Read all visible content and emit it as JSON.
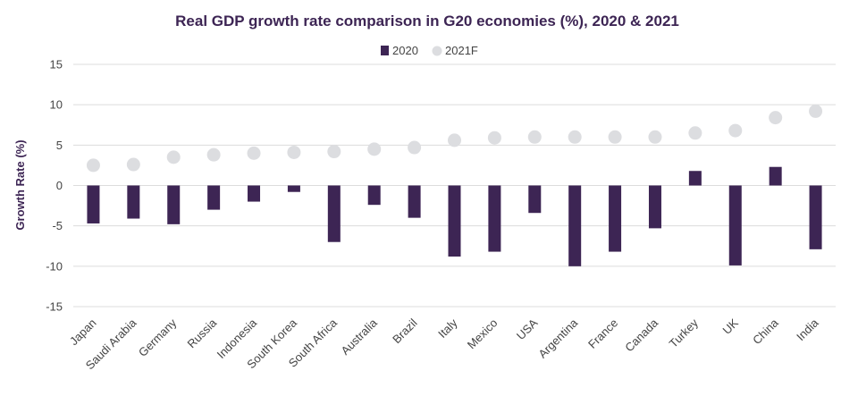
{
  "chart_data": {
    "type": "bar",
    "title": "Real GDP growth rate comparison in G20 economies (%), 2020 & 2021",
    "ylabel": "Growth Rate (%)",
    "xlabel": "",
    "ylim": [
      -15,
      15
    ],
    "yticks": [
      15,
      10,
      5,
      0,
      -5,
      -10,
      -15
    ],
    "grid": true,
    "legend_position": "top-center",
    "categories": [
      "Japan",
      "Saudi Arabia",
      "Germany",
      "Russia",
      "Indonesia",
      "South Korea",
      "South Africa",
      "Australia",
      "Brazil",
      "Italy",
      "Mexico",
      "USA",
      "Argentina",
      "France",
      "Canada",
      "Turkey",
      "UK",
      "China",
      "India"
    ],
    "series": [
      {
        "name": "2020",
        "mark": "bar",
        "color": "#3d2554",
        "values": [
          -4.7,
          -4.1,
          -4.8,
          -3.0,
          -2.0,
          -0.8,
          -7.0,
          -2.4,
          -4.0,
          -8.8,
          -8.2,
          -3.4,
          -10.0,
          -8.2,
          -5.3,
          1.8,
          -9.9,
          2.3,
          -7.9
        ]
      },
      {
        "name": "2021F",
        "mark": "point",
        "color": "#dcdde0",
        "values": [
          2.5,
          2.6,
          3.5,
          3.8,
          4.0,
          4.1,
          4.2,
          4.5,
          4.7,
          5.6,
          5.9,
          6.0,
          6.0,
          6.0,
          6.0,
          6.5,
          6.8,
          8.4,
          9.2
        ]
      }
    ]
  }
}
